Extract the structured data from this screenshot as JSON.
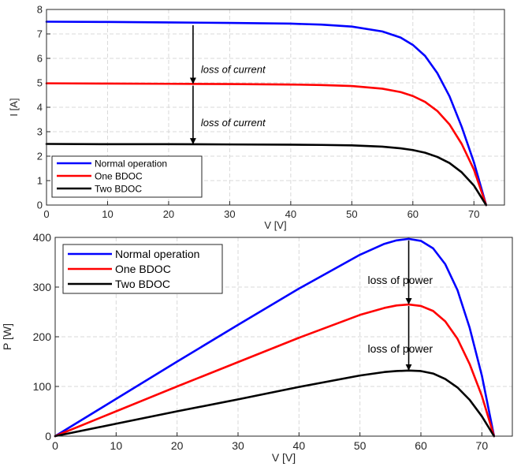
{
  "chart_data": [
    {
      "type": "line",
      "xlabel": "V [V]",
      "ylabel": "I [A]",
      "xlim": [
        0,
        75
      ],
      "ylim": [
        0,
        8
      ],
      "xticks": [
        "0",
        "10",
        "20",
        "30",
        "40",
        "50",
        "60",
        "70"
      ],
      "yticks": [
        "0",
        "1",
        "2",
        "3",
        "4",
        "5",
        "6",
        "7",
        "8"
      ],
      "grid": true,
      "legend_position": "bottom-left",
      "series": [
        {
          "name": "Normal operation",
          "color": "#0000ff",
          "x": [
            0,
            10,
            20,
            30,
            40,
            45,
            50,
            55,
            58,
            60,
            62,
            64,
            66,
            68,
            70,
            72
          ],
          "y": [
            7.5,
            7.49,
            7.47,
            7.45,
            7.42,
            7.38,
            7.3,
            7.1,
            6.85,
            6.55,
            6.1,
            5.4,
            4.45,
            3.2,
            1.75,
            0
          ]
        },
        {
          "name": "One BDOC",
          "color": "#ff0000",
          "x": [
            0,
            10,
            20,
            30,
            40,
            45,
            50,
            55,
            58,
            60,
            62,
            64,
            66,
            68,
            70,
            72
          ],
          "y": [
            4.98,
            4.97,
            4.96,
            4.95,
            4.93,
            4.91,
            4.87,
            4.76,
            4.62,
            4.46,
            4.22,
            3.85,
            3.3,
            2.5,
            1.45,
            0
          ]
        },
        {
          "name": "Two BDOC",
          "color": "#000000",
          "x": [
            0,
            10,
            20,
            30,
            40,
            45,
            50,
            55,
            58,
            60,
            62,
            64,
            66,
            68,
            70,
            72
          ],
          "y": [
            2.5,
            2.49,
            2.49,
            2.48,
            2.47,
            2.46,
            2.44,
            2.39,
            2.32,
            2.25,
            2.14,
            1.97,
            1.72,
            1.34,
            0.8,
            0
          ]
        }
      ],
      "annotations": [
        {
          "text": "loss of current",
          "arrow_x": 24,
          "from_y": 7.42,
          "to_y": 4.95
        },
        {
          "text": "loss of current",
          "arrow_x": 24,
          "from_y": 4.95,
          "to_y": 2.48
        }
      ]
    },
    {
      "type": "line",
      "xlabel": "V [V]",
      "ylabel": "P [W]",
      "xlim": [
        0,
        75
      ],
      "ylim": [
        0,
        400
      ],
      "xticks": [
        "0",
        "10",
        "20",
        "30",
        "40",
        "50",
        "60",
        "70"
      ],
      "yticks": [
        "0",
        "100",
        "200",
        "300",
        "400"
      ],
      "grid": true,
      "legend_position": "top-left",
      "series": [
        {
          "name": "Normal operation",
          "color": "#0000ff",
          "x": [
            0,
            10,
            20,
            30,
            40,
            50,
            54,
            56,
            58,
            60,
            62,
            64,
            66,
            68,
            70,
            72
          ],
          "y": [
            0,
            75,
            150,
            224,
            297,
            365,
            387,
            394,
            397,
            393,
            378,
            346,
            294,
            218,
            122,
            0
          ]
        },
        {
          "name": "One BDOC",
          "color": "#ff0000",
          "x": [
            0,
            10,
            20,
            30,
            40,
            50,
            54,
            56,
            58,
            60,
            62,
            64,
            66,
            68,
            70,
            72
          ],
          "y": [
            0,
            50,
            100,
            149,
            198,
            244,
            258,
            263,
            265,
            262,
            252,
            231,
            196,
            145,
            81,
            0
          ]
        },
        {
          "name": "Two BDOC",
          "color": "#000000",
          "x": [
            0,
            10,
            20,
            30,
            40,
            50,
            54,
            56,
            58,
            60,
            62,
            64,
            66,
            68,
            70,
            72
          ],
          "y": [
            0,
            25,
            50,
            74,
            99,
            122,
            129,
            131,
            132,
            131,
            126,
            115,
            98,
            73,
            40,
            0
          ]
        }
      ],
      "annotations": [
        {
          "text": "loss of power",
          "arrow_x": 58,
          "from_y": 397,
          "to_y": 265
        },
        {
          "text": "loss of power",
          "arrow_x": 58,
          "from_y": 265,
          "to_y": 132
        }
      ]
    }
  ]
}
